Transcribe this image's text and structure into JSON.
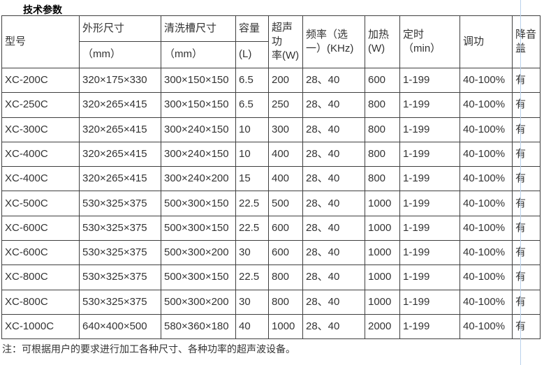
{
  "page": {
    "title": "技术参数",
    "note": "注：可根据用户的要求进行加工各种尺寸、各种功率的超声波设备。",
    "colors": {
      "table_border": "#3f3f3f",
      "text": "#333333",
      "guide_line": "#b9d1ec",
      "background": "#ffffff"
    }
  },
  "table": {
    "header": {
      "model": "型号",
      "outer_dimensions": "外形尺寸",
      "outer_dimensions_unit": "（mm）",
      "tank_dimensions": "清洗槽尺寸",
      "tank_dimensions_unit": "（mm）",
      "capacity": "容量",
      "capacity_unit": "(L)",
      "ultrasonic_power": "超声功\n率(W)",
      "frequency": "频率（选\n一）(KHz)",
      "heating": "加热\n(W)",
      "timer": "定时\n（min）",
      "power_adjust": "调功",
      "noise_cover": "降音\n盖"
    },
    "rows": [
      [
        "XC-200C",
        "320×175×330",
        "300×150×150",
        "6.5",
        "200",
        "28、40",
        "600",
        "1-199",
        "40-100%",
        "有"
      ],
      [
        "XC-250C",
        "320×265×415",
        "300×150×150",
        "6.5",
        "250",
        "28、40",
        "800",
        "1-199",
        "40-100%",
        "有"
      ],
      [
        "XC-300C",
        "320×265×415",
        "300×240×150",
        "10",
        "300",
        "28、40",
        "800",
        "1-199",
        "40-100%",
        "有"
      ],
      [
        "XC-400C",
        "320×265×415",
        "300×240×150",
        "10",
        "400",
        "28、40",
        "800",
        "1-199",
        "40-100%",
        "有"
      ],
      [
        "XC-400C",
        "320×265×415",
        "300×240×200",
        "15",
        "400",
        "28、40",
        "800",
        "1-199",
        "40-100%",
        "有"
      ],
      [
        "XC-500C",
        "530×325×375",
        "500×300×150",
        "22.5",
        "500",
        "28、40",
        "1000",
        "1-199",
        "40-100%",
        "有"
      ],
      [
        "XC-600C",
        "530×325×375",
        "500×300×150",
        "22.5",
        "600",
        "28、40",
        "1000",
        "1-199",
        "40-100%",
        "有"
      ],
      [
        "XC-600C",
        "530×325×375",
        "500×300×200",
        "30",
        "600",
        "28、40",
        "1000",
        "1-199",
        "40-100%",
        "有"
      ],
      [
        "XC-800C",
        "530×325×375",
        "500×300×150",
        "22.5",
        "800",
        "28、40",
        "1000",
        "1-199",
        "40-100%",
        "有"
      ],
      [
        "XC-800C",
        "530×325×375",
        "500×300×200",
        "30",
        "800",
        "28、40",
        "1000",
        "1-199",
        "40-100%",
        "有"
      ],
      [
        "XC-1000C",
        "640×400×500",
        "580×360×180",
        "40",
        "1000",
        "28、40",
        "2000",
        "1-199",
        "40-100%",
        "有"
      ]
    ]
  }
}
